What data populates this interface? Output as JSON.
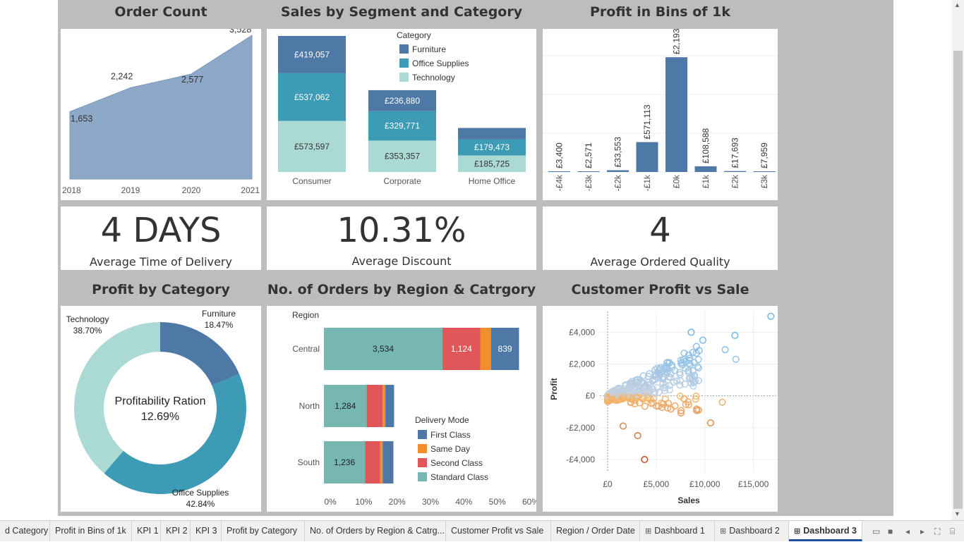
{
  "titles": {
    "order_count": "Order Count",
    "sales_segment": "Sales by Segment and Category",
    "profit_bins": "Profit in Bins of 1k",
    "profit_category": "Profit by Category",
    "orders_region": "No. of Orders by Region & Catrgory",
    "customer_profit": "Customer Profit vs Sale"
  },
  "kpis": [
    {
      "value": "4 DAYS",
      "label": "Average Time of Delivery"
    },
    {
      "value": "10.31%",
      "label": "Average Discount"
    },
    {
      "value": "4",
      "label": "Average Ordered Quality"
    }
  ],
  "colors": {
    "furniture": "#4e79a7",
    "office_supplies": "#3e9bb6",
    "technology": "#abdad4",
    "standard_class": "#76b7b2",
    "second_class": "#e15759",
    "same_day": "#f28e2b",
    "first_class": "#4e79a7",
    "area": "#8ea9c8"
  },
  "icons": [
    "grid-icon",
    "presentation-icon",
    "prev-icon",
    "next-icon",
    "fullscreen-icon",
    "device-preview-icon"
  ],
  "chart_data": [
    {
      "type": "area",
      "title": "Order Count",
      "x": [
        "2018",
        "2019",
        "2020",
        "2021"
      ],
      "values": [
        1653,
        2242,
        2577,
        3528
      ],
      "labels": [
        "1,653",
        "2,242",
        "2,577",
        "3,528"
      ],
      "ylim": [
        0,
        3600
      ]
    },
    {
      "type": "bar",
      "stacked": true,
      "title": "Sales by Segment and Category",
      "categories": [
        "Consumer",
        "Corporate",
        "Home Office"
      ],
      "legend_title": "Category",
      "series": [
        {
          "name": "Technology",
          "values": [
            573597,
            353357,
            185725
          ],
          "labels": [
            "£573,597",
            "£353,357",
            "£185,725"
          ]
        },
        {
          "name": "Office Supplies",
          "values": [
            537062,
            329771,
            179473
          ],
          "labels": [
            "£537,062",
            "£329,771",
            "£179,473"
          ]
        },
        {
          "name": "Furniture",
          "values": [
            419057,
            236880,
            130000
          ],
          "labels": [
            "£419,057",
            "£236,880",
            ""
          ]
        }
      ]
    },
    {
      "type": "bar",
      "title": "Profit in Bins of 1k",
      "categories": [
        "-£4k",
        "-£3k",
        "-£2k",
        "-£1k",
        "£0k",
        "£1k",
        "£2k",
        "£3k"
      ],
      "values": [
        3400,
        2571,
        33553,
        571113,
        2193212,
        108588,
        17693,
        7959
      ],
      "labels": [
        "£3,400",
        "£2,571",
        "£33,553",
        "£571,113",
        "£2,193,212",
        "£108,588",
        "£17,693",
        "£7,959"
      ],
      "ylim": [
        0,
        2600000
      ]
    },
    {
      "type": "pie",
      "title": "Profit by Category",
      "center_title": "Profitability Ration",
      "center_value": "12.69%",
      "slices": [
        {
          "name": "Furniture",
          "value": 18.47,
          "label": "18.47%"
        },
        {
          "name": "Office Supplies",
          "value": 42.84,
          "label": "42.84%"
        },
        {
          "name": "Technology",
          "value": 38.7,
          "label": "38.70%"
        }
      ]
    },
    {
      "type": "bar",
      "orientation": "horizontal",
      "stacked": true,
      "title": "No. of Orders by Region & Catrgory",
      "row_header": "Region",
      "categories": [
        "Central",
        "North",
        "South"
      ],
      "series": [
        {
          "name": "Standard Class",
          "values": [
            35.5,
            12.8,
            12.3
          ],
          "labels": [
            "3,534",
            "1,284",
            "1,236"
          ]
        },
        {
          "name": "Second Class",
          "values": [
            11.3,
            4.8,
            4.5
          ],
          "labels": [
            "1,124",
            "",
            ""
          ]
        },
        {
          "name": "Same Day",
          "values": [
            3.2,
            0.8,
            0.8
          ],
          "labels": [
            "",
            "",
            ""
          ]
        },
        {
          "name": "First Class",
          "values": [
            8.4,
            2.6,
            3.2
          ],
          "labels": [
            "839",
            "",
            ""
          ]
        }
      ],
      "legend_title": "Delivery Mode",
      "legend_items": [
        "First Class",
        "Same Day",
        "Second Class",
        "Standard Class"
      ],
      "xticks": [
        "0%",
        "10%",
        "20%",
        "30%",
        "40%",
        "50%",
        "60%"
      ],
      "xlim": [
        0,
        60
      ]
    },
    {
      "type": "scatter",
      "title": "Customer Profit vs Sale",
      "xlabel": "Sales",
      "ylabel": "Profit",
      "xticks": [
        "£0",
        "£5,000",
        "£10,000",
        "£15,000"
      ],
      "yticks": [
        "£4,000",
        "£2,000",
        "£0",
        "-£2,000",
        "-£4,000"
      ],
      "xlim": [
        -800,
        17500
      ],
      "ylim": [
        -4800,
        5300
      ],
      "grid": true,
      "notable_points": [
        [
          16800,
          5000
        ],
        [
          13100,
          3800
        ],
        [
          13200,
          2300
        ],
        [
          12100,
          2900
        ],
        [
          8600,
          4000
        ],
        [
          9800,
          3500
        ],
        [
          10600,
          -1700
        ],
        [
          11800,
          -400
        ],
        [
          3800,
          -4000
        ],
        [
          3100,
          -2500
        ],
        [
          1600,
          -1900
        ]
      ]
    }
  ],
  "tabs": [
    {
      "label": "d Category",
      "grid": false
    },
    {
      "label": "Profit in Bins of 1k",
      "grid": false
    },
    {
      "label": "KPI 1",
      "grid": false
    },
    {
      "label": "KPI 2",
      "grid": false
    },
    {
      "label": "KPI 3",
      "grid": false
    },
    {
      "label": "Profit by Category",
      "grid": false
    },
    {
      "label": "No. of Orders by Region & Catrg...",
      "grid": false
    },
    {
      "label": "Customer Profit vs Sale",
      "grid": false
    },
    {
      "label": "Region / Order Date",
      "grid": false
    },
    {
      "label": "Dashboard 1",
      "grid": true
    },
    {
      "label": "Dashboard 2",
      "grid": true
    },
    {
      "label": "Dashboard 3",
      "grid": true,
      "active": true
    }
  ]
}
